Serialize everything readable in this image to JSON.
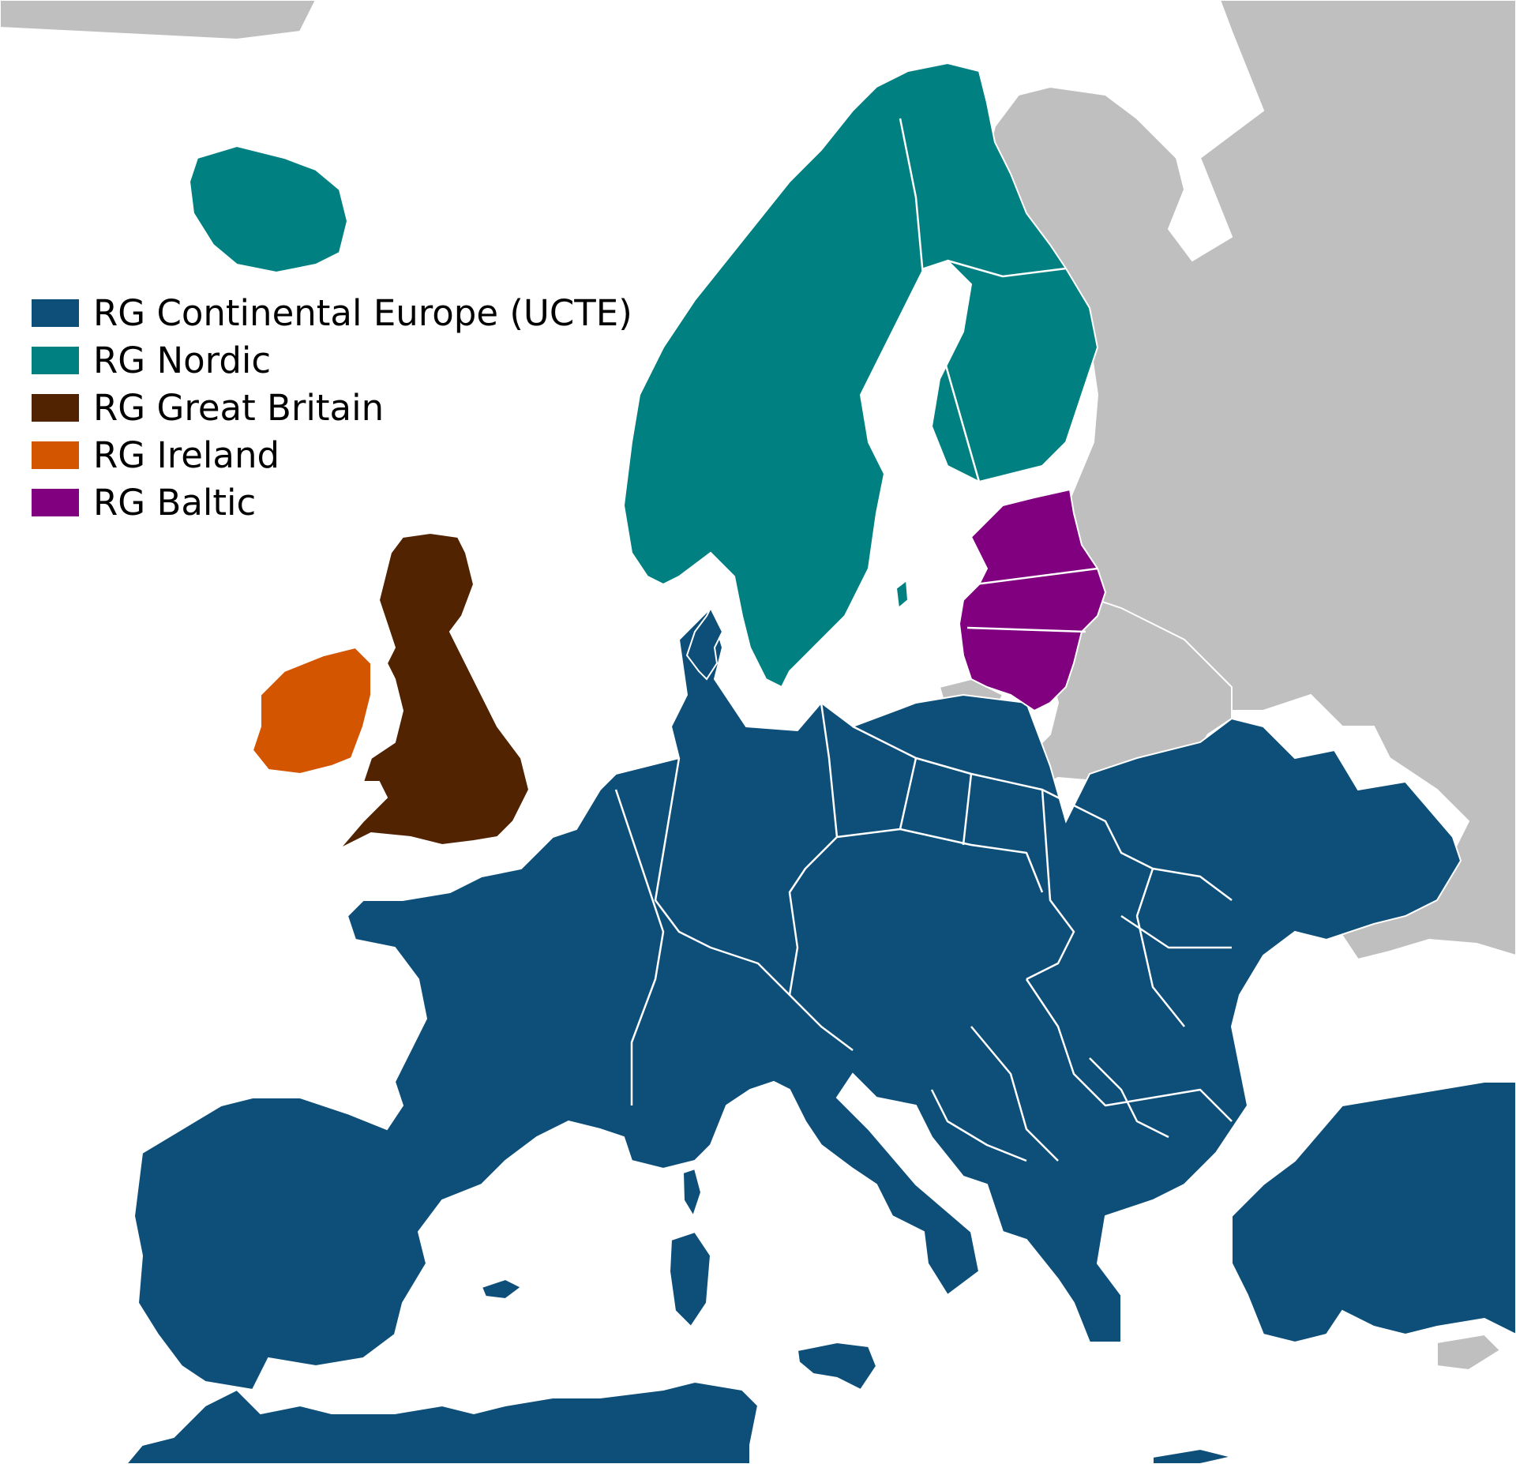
{
  "legend": {
    "items": [
      {
        "label": "RG Continental Europe (UCTE)",
        "color": "#0d4f79"
      },
      {
        "label": "RG Nordic",
        "color": "#008080"
      },
      {
        "label": "RG Great Britain",
        "color": "#512300"
      },
      {
        "label": "RG Ireland",
        "color": "#d45500"
      },
      {
        "label": "RG Baltic",
        "color": "#800080"
      }
    ]
  },
  "map": {
    "sea_color": "#ffffff",
    "non_member_color": "#bfbfbf",
    "border_color": "#ffffff"
  }
}
